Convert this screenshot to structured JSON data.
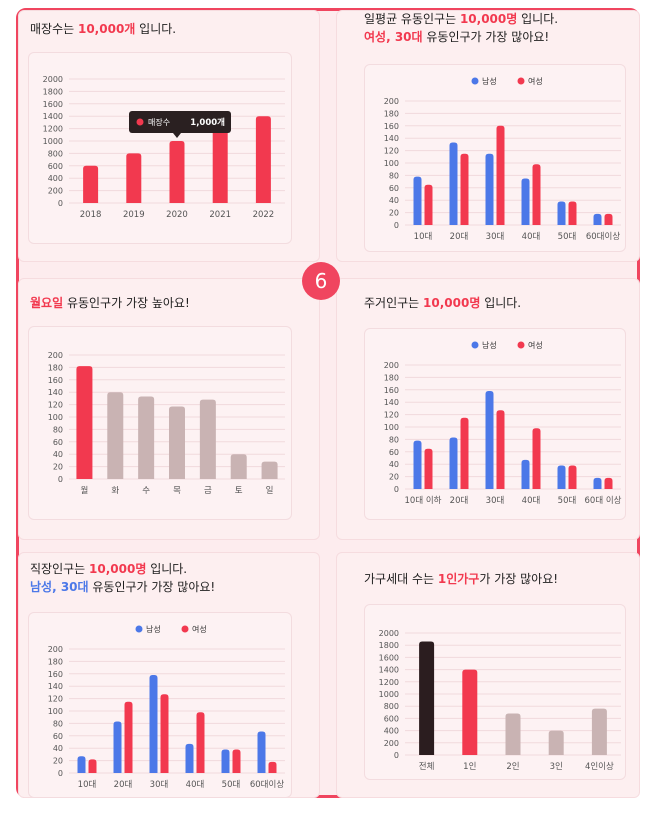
{
  "badge": "6",
  "colors": {
    "accent": "#f2394f",
    "male": "#4c78e8",
    "female": "#f2394f",
    "muted": "#c9b3b3",
    "dark": "#2b1d1f"
  },
  "headings": {
    "store": {
      "pre": "매장수는 ",
      "hl": "10,000개",
      "post": " 입니다."
    },
    "daily": {
      "pre": "일평균 유동인구는 ",
      "hl": "10,000명",
      "post": " 입니다.",
      "line2_hl": "여성, 30대",
      "line2_post": " 유동인구가 가장 많아요!"
    },
    "weekday": {
      "hl": "월요일",
      "post": " 유동인구가 가장 높아요!"
    },
    "resident": {
      "pre": "주거인구는 ",
      "hl": "10,000명",
      "post": " 입니다."
    },
    "worker": {
      "pre": "직장인구는 ",
      "hl": "10,000명",
      "post": " 입니다.",
      "line2_hl": "남성, 30대",
      "line2_post": " 유동인구가 가장 많아요!"
    },
    "household": {
      "pre": "가구세대 수는 ",
      "hl": "1인가구",
      "post": "가 가장 많아요!"
    }
  },
  "chart_data": [
    {
      "id": "store",
      "type": "bar",
      "categories": [
        "2018",
        "2019",
        "2020",
        "2021",
        "2022"
      ],
      "values": [
        600,
        800,
        1000,
        1250,
        1400
      ],
      "ylim": [
        0,
        2000
      ],
      "yticks": [
        0,
        200,
        400,
        600,
        800,
        1000,
        1200,
        1400,
        1600,
        1800,
        2000
      ],
      "tooltip": {
        "series": "매장수",
        "value": "1,000개",
        "index": 2
      }
    },
    {
      "id": "daily",
      "type": "bar",
      "categories": [
        "10대",
        "20대",
        "30대",
        "40대",
        "50대",
        "60대이상"
      ],
      "series": [
        {
          "name": "남성",
          "values": [
            78,
            133,
            115,
            75,
            38,
            18
          ]
        },
        {
          "name": "여성",
          "values": [
            65,
            115,
            160,
            98,
            38,
            18
          ]
        }
      ],
      "ylim": [
        0,
        200
      ],
      "yticks": [
        0,
        20,
        40,
        60,
        80,
        100,
        120,
        140,
        160,
        180,
        200
      ],
      "legend": "top-center"
    },
    {
      "id": "weekday",
      "type": "bar",
      "categories": [
        "월",
        "화",
        "수",
        "목",
        "금",
        "토",
        "일"
      ],
      "values": [
        182,
        140,
        133,
        117,
        128,
        40,
        28
      ],
      "ylim": [
        0,
        200
      ],
      "yticks": [
        0,
        20,
        40,
        60,
        80,
        100,
        120,
        140,
        160,
        180,
        200
      ],
      "highlight_index": 0
    },
    {
      "id": "resident",
      "type": "bar",
      "categories": [
        "10대 이하",
        "20대",
        "30대",
        "40대",
        "50대",
        "60대 이상"
      ],
      "series": [
        {
          "name": "남성",
          "values": [
            78,
            83,
            158,
            47,
            38,
            18
          ]
        },
        {
          "name": "여성",
          "values": [
            65,
            115,
            127,
            98,
            38,
            18
          ]
        }
      ],
      "ylim": [
        0,
        200
      ],
      "yticks": [
        0,
        20,
        40,
        60,
        80,
        100,
        120,
        140,
        160,
        180,
        200
      ],
      "legend": "top-center"
    },
    {
      "id": "worker",
      "type": "bar",
      "categories": [
        "10대",
        "20대",
        "30대",
        "40대",
        "50대",
        "60대이상"
      ],
      "series": [
        {
          "name": "남성",
          "values": [
            27,
            83,
            158,
            47,
            38,
            67
          ]
        },
        {
          "name": "여성",
          "values": [
            22,
            115,
            127,
            98,
            38,
            18
          ]
        }
      ],
      "ylim": [
        0,
        200
      ],
      "yticks": [
        0,
        20,
        40,
        60,
        80,
        100,
        120,
        140,
        160,
        180,
        200
      ],
      "legend": "top-center"
    },
    {
      "id": "household",
      "type": "bar",
      "categories": [
        "전체",
        "1인",
        "2인",
        "3인",
        "4인이상"
      ],
      "values": [
        1860,
        1400,
        680,
        400,
        760
      ],
      "ylim": [
        0,
        2000
      ],
      "yticks": [
        0,
        200,
        400,
        600,
        800,
        1000,
        1200,
        1400,
        1600,
        1800,
        2000
      ]
    }
  ]
}
